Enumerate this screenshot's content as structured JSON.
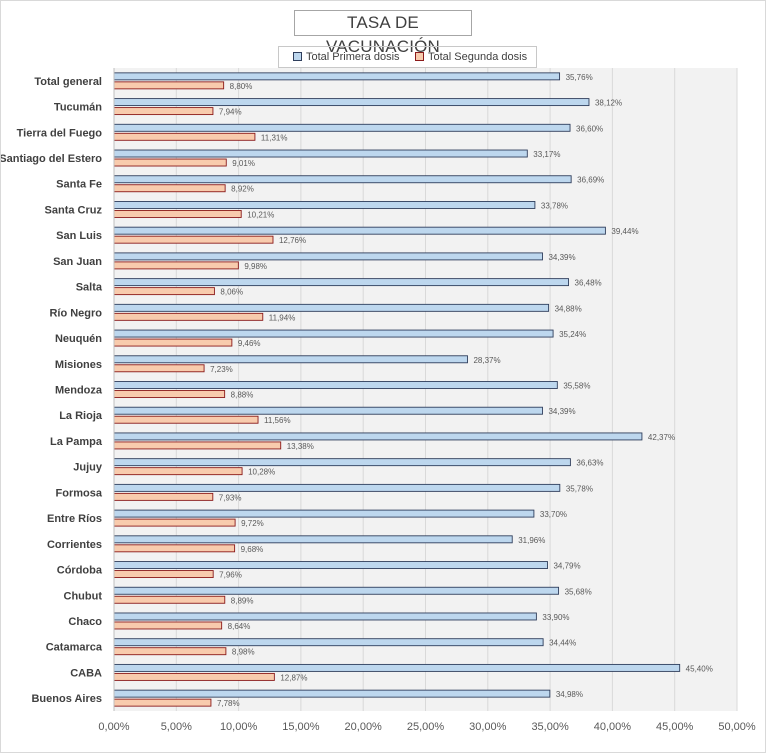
{
  "chart_data": {
    "type": "bar",
    "orientation": "horizontal",
    "title": "TASA DE VACUNACIÓN",
    "categories": [
      "Total general",
      "Tucumán",
      "Tierra del Fuego",
      "Santiago del Estero",
      "Santa Fe",
      "Santa Cruz",
      "San Luis",
      "San Juan",
      "Salta",
      "Río Negro",
      "Neuquén",
      "Misiones",
      "Mendoza",
      "La Rioja",
      "La Pampa",
      "Jujuy",
      "Formosa",
      "Entre Ríos",
      "Corrientes",
      "Córdoba",
      "Chubut",
      "Chaco",
      "Catamarca",
      "CABA",
      "Buenos Aires"
    ],
    "series": [
      {
        "name": "Total Primera dosis",
        "color": "#bdd7ee",
        "border": "#2f3e5c",
        "values": [
          35.76,
          38.12,
          36.6,
          33.17,
          36.69,
          33.78,
          39.44,
          34.39,
          36.48,
          34.88,
          35.24,
          28.37,
          35.58,
          34.39,
          42.37,
          36.63,
          35.78,
          33.7,
          31.96,
          34.79,
          35.68,
          33.9,
          34.44,
          45.4,
          34.98
        ],
        "labels": [
          "35,76%",
          "38,12%",
          "36,60%",
          "33,17%",
          "36,69%",
          "33,78%",
          "39,44%",
          "34,39%",
          "36,48%",
          "34,88%",
          "35,24%",
          "28,37%",
          "35,58%",
          "34,39%",
          "42,37%",
          "36,63%",
          "35,78%",
          "33,70%",
          "31,96%",
          "34,79%",
          "35,68%",
          "33,90%",
          "34,44%",
          "45,40%",
          "34,98%"
        ]
      },
      {
        "name": "Total Segunda dosis",
        "color": "#f8cbad",
        "border": "#8b1a1a",
        "values": [
          8.8,
          7.94,
          11.31,
          9.01,
          8.92,
          10.21,
          12.76,
          9.98,
          8.06,
          11.94,
          9.46,
          7.23,
          8.88,
          11.56,
          13.38,
          10.28,
          7.93,
          9.72,
          9.68,
          7.96,
          8.89,
          8.64,
          8.98,
          12.87,
          7.78
        ],
        "labels": [
          "8,80%",
          "7,94%",
          "11,31%",
          "9,01%",
          "8,92%",
          "10,21%",
          "12,76%",
          "9,98%",
          "8,06%",
          "11,94%",
          "9,46%",
          "7,23%",
          "8,88%",
          "11,56%",
          "13,38%",
          "10,28%",
          "7,93%",
          "9,72%",
          "9,68%",
          "7,96%",
          "8,89%",
          "8,64%",
          "8,98%",
          "12,87%",
          "7,78%"
        ]
      }
    ],
    "xlim": [
      0,
      50
    ],
    "x_ticks": [
      0,
      5,
      10,
      15,
      20,
      25,
      30,
      35,
      40,
      45,
      50
    ],
    "x_tick_labels": [
      "0,00%",
      "5,00%",
      "10,00%",
      "15,00%",
      "20,00%",
      "25,00%",
      "30,00%",
      "35,00%",
      "40,00%",
      "45,00%",
      "50,00%"
    ],
    "grid": "vertical",
    "legend_position": "top",
    "plot_background": "#f2f2f2"
  }
}
